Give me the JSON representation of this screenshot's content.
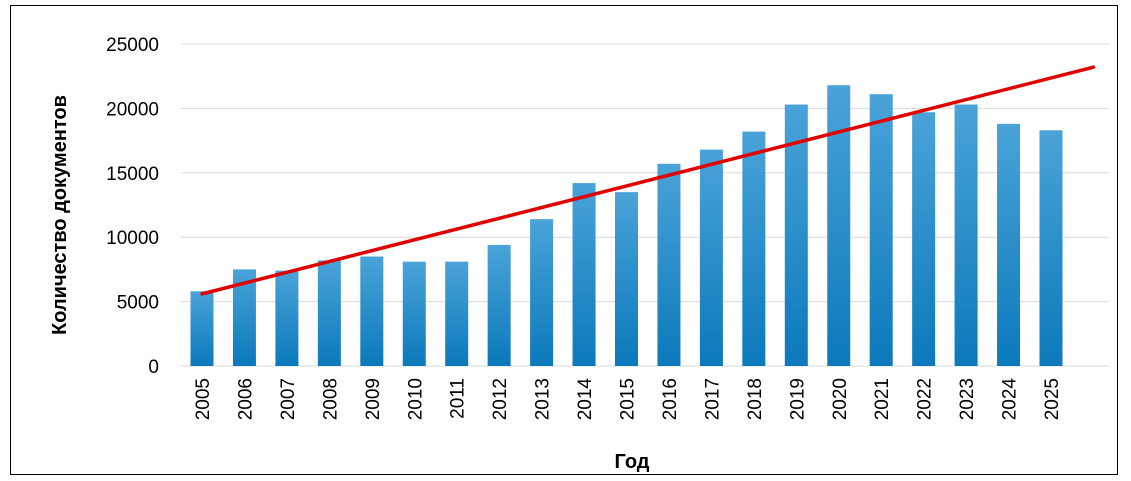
{
  "chart_data": {
    "type": "bar",
    "title": "",
    "xlabel": "Год",
    "ylabel": "Количество документов",
    "ylim": [
      0,
      25000
    ],
    "yticks": [
      0,
      5000,
      10000,
      15000,
      20000,
      25000
    ],
    "grid": true,
    "legend": "none",
    "categories": [
      "2005",
      "2006",
      "2007",
      "2008",
      "2009",
      "2010",
      "2011",
      "2012",
      "2013",
      "2014",
      "2015",
      "2016",
      "2017",
      "2018",
      "2019",
      "2020",
      "2021",
      "2022",
      "2023",
      "2024",
      "2025"
    ],
    "series": [
      {
        "values": [
          5800,
          7500,
          7400,
          8200,
          8500,
          8100,
          8100,
          9400,
          11400,
          14200,
          13500,
          15700,
          16800,
          18200,
          20300,
          21800,
          21100,
          19700,
          20300,
          18800,
          18300
        ]
      }
    ],
    "trendline": {
      "type": "linear",
      "start": [
        2005,
        5600
      ],
      "end": [
        2026,
        23200
      ]
    },
    "colors": {
      "bar": "#1f88c5",
      "bar_light": "#4aa3d8",
      "trend": "#e00000",
      "grid": "#d9d9d9"
    }
  }
}
